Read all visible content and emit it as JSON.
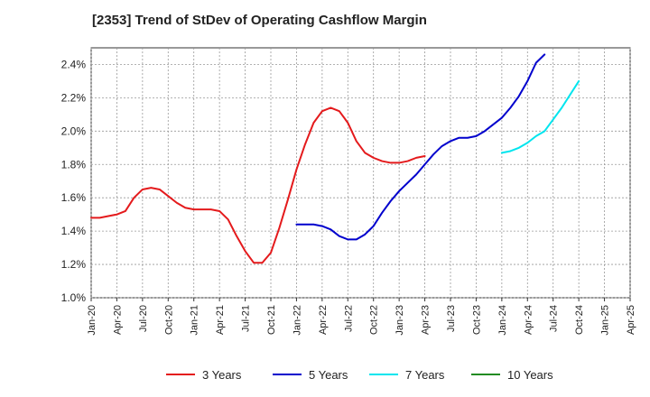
{
  "title": "[2353]  Trend of StDev of Operating Cashflow Margin",
  "chart_data": {
    "type": "line",
    "title": "[2353]  Trend of StDev of Operating Cashflow Margin",
    "xlabel": "",
    "ylabel": "",
    "ylim": [
      1.0,
      2.5
    ],
    "yticks": [
      "1.0%",
      "1.2%",
      "1.4%",
      "1.6%",
      "1.8%",
      "2.0%",
      "2.2%",
      "2.4%"
    ],
    "ytick_values": [
      1.0,
      1.2,
      1.4,
      1.6,
      1.8,
      2.0,
      2.2,
      2.4
    ],
    "x_categories": [
      "Jan-20",
      "Apr-20",
      "Jul-20",
      "Oct-20",
      "Jan-21",
      "Apr-21",
      "Jul-21",
      "Oct-21",
      "Jan-22",
      "Apr-22",
      "Jul-22",
      "Oct-22",
      "Jan-23",
      "Apr-23",
      "Jul-23",
      "Oct-23",
      "Jan-24",
      "Apr-24",
      "Jul-24",
      "Oct-24",
      "Jan-25",
      "Apr-25"
    ],
    "grid": true,
    "legend_position": "bottom",
    "series": [
      {
        "name": "3 Years",
        "color": "#e41a1c",
        "start_index": 0,
        "values": [
          1.48,
          1.48,
          1.49,
          1.5,
          1.52,
          1.6,
          1.65,
          1.66,
          1.65,
          1.61,
          1.57,
          1.54,
          1.53,
          1.53,
          1.53,
          1.52,
          1.47,
          1.37,
          1.28,
          1.21,
          1.21,
          1.27,
          1.42,
          1.59,
          1.77,
          1.92,
          2.05,
          2.12,
          2.14,
          2.12,
          2.05,
          1.94,
          1.87,
          1.84,
          1.82,
          1.81,
          1.81,
          1.82,
          1.84,
          1.85
        ]
      },
      {
        "name": "5 Years",
        "color": "#0000cd",
        "start_index": 24,
        "values": [
          1.44,
          1.44,
          1.44,
          1.43,
          1.41,
          1.37,
          1.35,
          1.35,
          1.38,
          1.43,
          1.51,
          1.58,
          1.64,
          1.69,
          1.74,
          1.8,
          1.86,
          1.91,
          1.94,
          1.96,
          1.96,
          1.97,
          2.0,
          2.04,
          2.08,
          2.14,
          2.21,
          2.3,
          2.41,
          2.46
        ]
      },
      {
        "name": "7 Years",
        "color": "#00e5ee",
        "start_index": 48,
        "values": [
          1.87,
          1.88,
          1.9,
          1.93,
          1.97,
          2.0,
          2.07,
          2.14,
          2.22,
          2.3
        ]
      },
      {
        "name": "10 Years",
        "color": "#228b22",
        "start_index": 0,
        "values": []
      }
    ]
  }
}
